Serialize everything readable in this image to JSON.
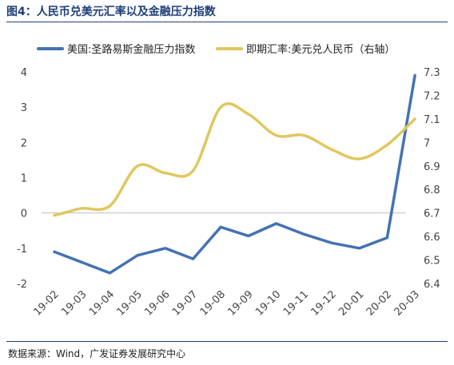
{
  "figure": {
    "title": "图4：人民币兑美元汇率以及金融压力指数",
    "source": "数据来源：Wind，广发证券发展研究中心"
  },
  "chart_data": {
    "type": "line",
    "categories": [
      "19-02",
      "19-03",
      "19-04",
      "19-05",
      "19-06",
      "19-07",
      "19-08",
      "19-09",
      "19-10",
      "19-11",
      "19-12",
      "20-01",
      "20-02",
      "20-03"
    ],
    "left_axis": {
      "ylim": [
        -2,
        4
      ],
      "ticks": [
        "4",
        "3",
        "2",
        "1",
        "0",
        "-1",
        "-2"
      ]
    },
    "right_axis": {
      "ylim": [
        6.4,
        7.3
      ],
      "ticks": [
        "7.3",
        "7.2",
        "7.1",
        "7",
        "6.9",
        "6.8",
        "6.7",
        "6.6",
        "6.5",
        "6.4"
      ]
    },
    "grid": false,
    "legend": "top",
    "series": [
      {
        "name": "美国:圣路易斯金融压力指数",
        "axis": "left",
        "color": "#4472b4",
        "points": [
          {
            "x": "19-02",
            "y": -1.1
          },
          {
            "x": "19-03",
            "y": -1.4
          },
          {
            "x": "19-04",
            "y": -1.7
          },
          {
            "x": "19-05",
            "y": -1.2
          },
          {
            "x": "19-06",
            "y": -1.0
          },
          {
            "x": "19-07",
            "y": -1.3
          },
          {
            "x": "19-08",
            "y": -0.4
          },
          {
            "x": "19-09",
            "y": -0.65
          },
          {
            "x": "19-10",
            "y": -0.3
          },
          {
            "x": "19-11",
            "y": -0.6
          },
          {
            "x": "19-12",
            "y": -0.85
          },
          {
            "x": "20-01",
            "y": -1.0
          },
          {
            "x": "20-02",
            "y": -0.7
          },
          {
            "x": "20-03",
            "y": 3.9
          }
        ]
      },
      {
        "name": "即期汇率:美元兑人民币（右轴）",
        "axis": "right",
        "color": "#e0c75e",
        "points": [
          {
            "x": "19-02",
            "y": 6.69
          },
          {
            "x": "19-02.5",
            "y": 6.705
          },
          {
            "x": "19-03",
            "y": 6.72
          },
          {
            "x": "19-04",
            "y": 6.73
          },
          {
            "x": "19-05",
            "y": 6.9
          },
          {
            "x": "19-06",
            "y": 6.87
          },
          {
            "x": "19-07",
            "y": 6.88
          },
          {
            "x": "19-08",
            "y": 7.15
          },
          {
            "x": "19-09",
            "y": 7.12
          },
          {
            "x": "19-10",
            "y": 7.03
          },
          {
            "x": "19-11",
            "y": 7.03
          },
          {
            "x": "19-12",
            "y": 6.97
          },
          {
            "x": "20-01",
            "y": 6.93
          },
          {
            "x": "20-02",
            "y": 6.99
          },
          {
            "x": "20-03",
            "y": 7.1
          }
        ]
      }
    ]
  }
}
